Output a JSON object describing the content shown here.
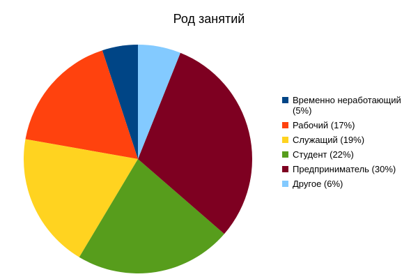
{
  "chart_data": {
    "type": "pie",
    "title": "Род занятий",
    "categories": [
      "Временно неработающий (5%)",
      "Рабочий (17%)",
      "Служащий (19%)",
      "Студент (22%)",
      "Предприниматель (30%)",
      "Другое (6%)"
    ],
    "values": [
      5,
      17,
      19,
      22,
      30,
      6
    ],
    "colors": [
      "#004586",
      "#ff420e",
      "#ffd320",
      "#579d1c",
      "#7e0021",
      "#83caff"
    ],
    "direction": "counterclockwise",
    "legend": "right"
  }
}
